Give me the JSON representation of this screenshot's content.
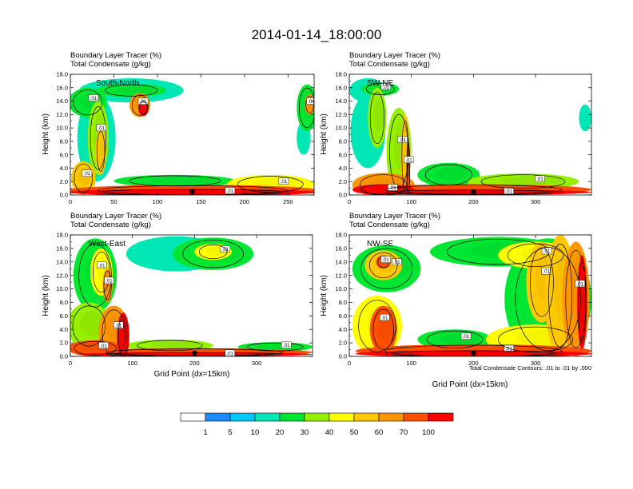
{
  "chart_data": {
    "type": "heatmap",
    "title": "2014-01-14_18:00:00",
    "field_label": "Boundary Layer Tracer   (%)",
    "contour_label": "Total Condensate   (g/kg)",
    "ylabel": "Height (km)",
    "xlabel": "Grid Point (dx=15km)",
    "contour_note": "Total Condensate Contours: .01 to .01 by .000",
    "contour_tag": ".01",
    "yticks": [
      "0.0",
      "2.0",
      "4.0",
      "6.0",
      "8.0",
      "10.0",
      "12.0",
      "14.0",
      "16.0",
      "18.0"
    ],
    "ylim": [
      0,
      18
    ],
    "legend": {
      "levels": [
        "1",
        "5",
        "10",
        "20",
        "30",
        "40",
        "50",
        "60",
        "70",
        "100"
      ],
      "colors": [
        "#ffffff",
        "#1e8cff",
        "#00c8ff",
        "#00e6b4",
        "#00e632",
        "#96f000",
        "#ffff00",
        "#ffc800",
        "#ff9600",
        "#ff5000",
        "#ff0000"
      ]
    },
    "panels": [
      {
        "id": "sn",
        "section": "South-North",
        "xlim": [
          0,
          280
        ],
        "xticks": [
          "0",
          "50",
          "100",
          "150",
          "200",
          "250"
        ],
        "xtick_values": [
          0,
          50,
          100,
          150,
          200,
          250
        ],
        "marker_x": 140,
        "blobs": [
          {
            "x": 20,
            "y": 13.8,
            "rx": 22,
            "ry": 2.2,
            "v": 20
          },
          {
            "x": 70,
            "y": 15.6,
            "rx": 60,
            "ry": 1.8,
            "v": 10
          },
          {
            "x": 70,
            "y": 15.6,
            "rx": 40,
            "ry": 1.0,
            "v": 20
          },
          {
            "x": 80,
            "y": 13.4,
            "rx": 12,
            "ry": 1.8,
            "v": 60
          },
          {
            "x": 84,
            "y": 13.0,
            "rx": 6,
            "ry": 1.2,
            "v": 100
          },
          {
            "x": 30,
            "y": 8.5,
            "rx": 22,
            "ry": 6.5,
            "v": 10
          },
          {
            "x": 32,
            "y": 8.5,
            "rx": 12,
            "ry": 5.5,
            "v": 30
          },
          {
            "x": 35,
            "y": 6.5,
            "rx": 6,
            "ry": 3.5,
            "v": 50
          },
          {
            "x": 15,
            "y": 2.5,
            "rx": 14,
            "ry": 2.5,
            "v": 50
          },
          {
            "x": 140,
            "y": 0.7,
            "rx": 145,
            "ry": 0.8,
            "v": 70
          },
          {
            "x": 140,
            "y": 0.4,
            "rx": 145,
            "ry": 0.5,
            "v": 100
          },
          {
            "x": 120,
            "y": 2.1,
            "rx": 70,
            "ry": 0.9,
            "v": 20
          },
          {
            "x": 230,
            "y": 1.6,
            "rx": 50,
            "ry": 1.4,
            "v": 40
          },
          {
            "x": 272,
            "y": 13.0,
            "rx": 12,
            "ry": 3.5,
            "v": 20
          },
          {
            "x": 275,
            "y": 13.5,
            "rx": 6,
            "ry": 1.5,
            "v": 60
          },
          {
            "x": 268,
            "y": 8.5,
            "rx": 8,
            "ry": 2.5,
            "v": 10
          }
        ]
      },
      {
        "id": "swne",
        "section": "SW-NE",
        "xlim": [
          0,
          390
        ],
        "xticks": [
          "0",
          "100",
          "200",
          "300"
        ],
        "xtick_values": [
          0,
          100,
          200,
          300
        ],
        "marker_x": 200,
        "blobs": [
          {
            "x": 30,
            "y": 15.6,
            "rx": 30,
            "ry": 1.8,
            "v": 10
          },
          {
            "x": 50,
            "y": 15.8,
            "rx": 30,
            "ry": 1.0,
            "v": 20
          },
          {
            "x": 30,
            "y": 9.5,
            "rx": 28,
            "ry": 5.5,
            "v": 10
          },
          {
            "x": 45,
            "y": 11.5,
            "rx": 15,
            "ry": 4.5,
            "v": 30
          },
          {
            "x": 80,
            "y": 6.5,
            "rx": 20,
            "ry": 6.5,
            "v": 30
          },
          {
            "x": 90,
            "y": 6.0,
            "rx": 7,
            "ry": 6.0,
            "v": 50
          },
          {
            "x": 95,
            "y": 4.0,
            "rx": 3,
            "ry": 4.5,
            "v": 80
          },
          {
            "x": 55,
            "y": 1.5,
            "rx": 50,
            "ry": 1.8,
            "v": 60
          },
          {
            "x": 55,
            "y": 0.8,
            "rx": 50,
            "ry": 0.8,
            "v": 100
          },
          {
            "x": 200,
            "y": 0.8,
            "rx": 190,
            "ry": 0.8,
            "v": 70
          },
          {
            "x": 200,
            "y": 0.4,
            "rx": 190,
            "ry": 0.4,
            "v": 100
          },
          {
            "x": 160,
            "y": 3.0,
            "rx": 50,
            "ry": 1.8,
            "v": 20
          },
          {
            "x": 280,
            "y": 2.0,
            "rx": 90,
            "ry": 1.2,
            "v": 30
          },
          {
            "x": 380,
            "y": 11.5,
            "rx": 10,
            "ry": 2.0,
            "v": 10
          }
        ]
      },
      {
        "id": "we",
        "section": "West-East",
        "xlim": [
          0,
          390
        ],
        "xticks": [
          "0",
          "100",
          "200",
          "300"
        ],
        "xtick_values": [
          0,
          100,
          200,
          300
        ],
        "marker_x": 200,
        "blobs": [
          {
            "x": 170,
            "y": 15.2,
            "rx": 80,
            "ry": 2.6,
            "v": 10
          },
          {
            "x": 230,
            "y": 15.2,
            "rx": 65,
            "ry": 2.4,
            "v": 20
          },
          {
            "x": 230,
            "y": 15.5,
            "rx": 30,
            "ry": 1.2,
            "v": 40
          },
          {
            "x": 40,
            "y": 12.0,
            "rx": 35,
            "ry": 5.5,
            "v": 20
          },
          {
            "x": 50,
            "y": 12.5,
            "rx": 18,
            "ry": 3.5,
            "v": 40
          },
          {
            "x": 60,
            "y": 10.5,
            "rx": 8,
            "ry": 2.5,
            "v": 60
          },
          {
            "x": 30,
            "y": 4.5,
            "rx": 35,
            "ry": 3.5,
            "v": 30
          },
          {
            "x": 70,
            "y": 3.5,
            "rx": 25,
            "ry": 4.0,
            "v": 60
          },
          {
            "x": 85,
            "y": 3.0,
            "rx": 10,
            "ry": 3.5,
            "v": 100
          },
          {
            "x": 40,
            "y": 1.2,
            "rx": 45,
            "ry": 1.2,
            "v": 70
          },
          {
            "x": 200,
            "y": 0.6,
            "rx": 190,
            "ry": 0.6,
            "v": 70
          },
          {
            "x": 200,
            "y": 0.3,
            "rx": 190,
            "ry": 0.3,
            "v": 100
          },
          {
            "x": 160,
            "y": 1.6,
            "rx": 70,
            "ry": 0.9,
            "v": 30
          },
          {
            "x": 330,
            "y": 1.4,
            "rx": 60,
            "ry": 0.7,
            "v": 20
          }
        ]
      },
      {
        "id": "nwse",
        "section": "NW-SE",
        "xlim": [
          0,
          390
        ],
        "xticks": [
          "0",
          "100",
          "200",
          "300"
        ],
        "xtick_values": [
          0,
          100,
          200,
          300
        ],
        "marker_x": 200,
        "blobs": [
          {
            "x": 60,
            "y": 13.0,
            "rx": 55,
            "ry": 3.5,
            "v": 20
          },
          {
            "x": 55,
            "y": 13.5,
            "rx": 30,
            "ry": 2.2,
            "v": 50
          },
          {
            "x": 55,
            "y": 14.0,
            "rx": 12,
            "ry": 1.0,
            "v": 70
          },
          {
            "x": 240,
            "y": 15.5,
            "rx": 110,
            "ry": 2.2,
            "v": 20
          },
          {
            "x": 300,
            "y": 15.0,
            "rx": 60,
            "ry": 2.0,
            "v": 40
          },
          {
            "x": 320,
            "y": 8.5,
            "rx": 70,
            "ry": 9.0,
            "v": 20
          },
          {
            "x": 310,
            "y": 11.0,
            "rx": 25,
            "ry": 6.0,
            "v": 50
          },
          {
            "x": 340,
            "y": 9.0,
            "rx": 25,
            "ry": 9.0,
            "v": 50
          },
          {
            "x": 365,
            "y": 8.5,
            "rx": 22,
            "ry": 8.5,
            "v": 60
          },
          {
            "x": 375,
            "y": 8.0,
            "rx": 8,
            "ry": 7.0,
            "v": 100
          },
          {
            "x": 45,
            "y": 4.5,
            "rx": 40,
            "ry": 4.5,
            "v": 40
          },
          {
            "x": 55,
            "y": 4.0,
            "rx": 22,
            "ry": 3.5,
            "v": 70
          },
          {
            "x": 200,
            "y": 0.8,
            "rx": 190,
            "ry": 1.0,
            "v": 70
          },
          {
            "x": 200,
            "y": 0.4,
            "rx": 190,
            "ry": 0.5,
            "v": 100
          },
          {
            "x": 170,
            "y": 2.5,
            "rx": 60,
            "ry": 1.5,
            "v": 20
          },
          {
            "x": 300,
            "y": 2.5,
            "rx": 80,
            "ry": 2.2,
            "v": 40
          }
        ]
      }
    ]
  }
}
